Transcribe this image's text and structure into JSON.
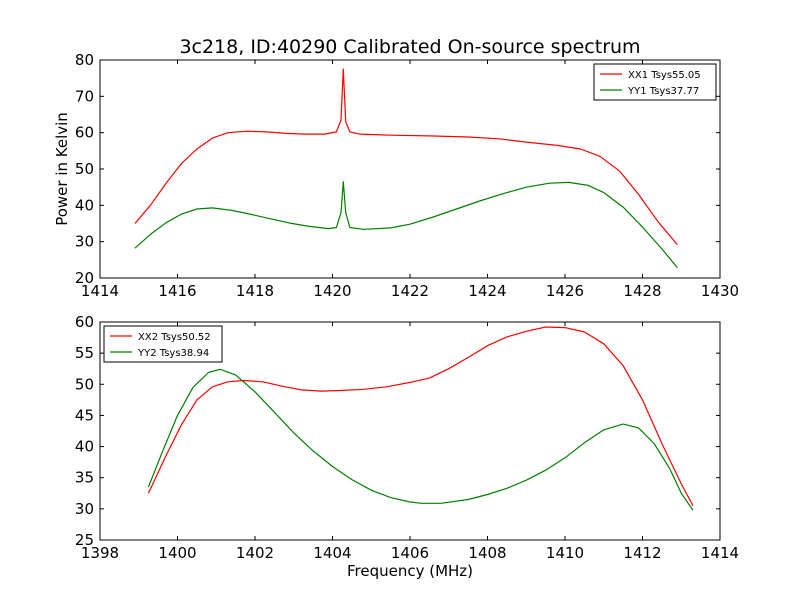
{
  "figure": {
    "title": "3c218, ID:40290 Calibrated On-source spectrum",
    "xlabel": "Frequency (MHz)",
    "ylabel": "Power in Kelvin"
  },
  "chart_data": [
    {
      "type": "line",
      "ylabel": "Power in Kelvin",
      "xlim": [
        1414,
        1430
      ],
      "ylim": [
        20,
        80
      ],
      "xticks": [
        1414,
        1416,
        1418,
        1420,
        1422,
        1424,
        1426,
        1428,
        1430
      ],
      "yticks": [
        20,
        30,
        40,
        50,
        60,
        70,
        80
      ],
      "grid": false,
      "legend_position": "top-right",
      "series": [
        {
          "name": "XX1 Tsys55.05",
          "color": "#ff0000",
          "points": [
            [
              1414.9,
              35.0
            ],
            [
              1415.3,
              40.0
            ],
            [
              1415.7,
              46.0
            ],
            [
              1416.1,
              51.5
            ],
            [
              1416.5,
              55.5
            ],
            [
              1416.9,
              58.5
            ],
            [
              1417.3,
              60.0
            ],
            [
              1417.8,
              60.4
            ],
            [
              1418.3,
              60.2
            ],
            [
              1418.8,
              59.8
            ],
            [
              1419.3,
              59.6
            ],
            [
              1419.8,
              59.6
            ],
            [
              1420.1,
              60.2
            ],
            [
              1420.22,
              63.5
            ],
            [
              1420.28,
              77.5
            ],
            [
              1420.34,
              63.0
            ],
            [
              1420.45,
              60.2
            ],
            [
              1420.7,
              59.6
            ],
            [
              1421.5,
              59.3
            ],
            [
              1422.5,
              59.1
            ],
            [
              1423.5,
              58.8
            ],
            [
              1424.3,
              58.3
            ],
            [
              1425.0,
              57.4
            ],
            [
              1425.8,
              56.5
            ],
            [
              1426.4,
              55.5
            ],
            [
              1426.9,
              53.5
            ],
            [
              1427.4,
              49.5
            ],
            [
              1427.9,
              43.0
            ],
            [
              1428.4,
              35.5
            ],
            [
              1428.9,
              29.2
            ]
          ]
        },
        {
          "name": "YY1 Tsys37.77",
          "color": "#008000",
          "points": [
            [
              1414.9,
              28.2
            ],
            [
              1415.3,
              32.0
            ],
            [
              1415.7,
              35.2
            ],
            [
              1416.1,
              37.6
            ],
            [
              1416.5,
              39.0
            ],
            [
              1416.9,
              39.3
            ],
            [
              1417.4,
              38.6
            ],
            [
              1417.9,
              37.5
            ],
            [
              1418.4,
              36.3
            ],
            [
              1418.9,
              35.1
            ],
            [
              1419.4,
              34.2
            ],
            [
              1419.9,
              33.6
            ],
            [
              1420.1,
              33.9
            ],
            [
              1420.22,
              38.0
            ],
            [
              1420.28,
              46.5
            ],
            [
              1420.34,
              38.0
            ],
            [
              1420.45,
              33.9
            ],
            [
              1420.8,
              33.4
            ],
            [
              1421.5,
              33.8
            ],
            [
              1422.0,
              34.8
            ],
            [
              1422.6,
              36.8
            ],
            [
              1423.2,
              39.0
            ],
            [
              1423.8,
              41.2
            ],
            [
              1424.4,
              43.2
            ],
            [
              1425.0,
              45.0
            ],
            [
              1425.6,
              46.1
            ],
            [
              1426.1,
              46.3
            ],
            [
              1426.6,
              45.5
            ],
            [
              1427.0,
              43.5
            ],
            [
              1427.5,
              39.5
            ],
            [
              1428.0,
              34.0
            ],
            [
              1428.5,
              28.0
            ],
            [
              1428.9,
              22.8
            ]
          ]
        }
      ]
    },
    {
      "type": "line",
      "xlabel": "Frequency (MHz)",
      "xlim": [
        1398,
        1414
      ],
      "ylim": [
        25,
        60
      ],
      "xticks": [
        1398,
        1400,
        1402,
        1404,
        1406,
        1408,
        1410,
        1412,
        1414
      ],
      "yticks": [
        25,
        30,
        35,
        40,
        45,
        50,
        55,
        60
      ],
      "grid": false,
      "legend_position": "top-left",
      "series": [
        {
          "name": "XX2 Tsys50.52",
          "color": "#ff0000",
          "points": [
            [
              1399.25,
              32.5
            ],
            [
              1399.7,
              38.5
            ],
            [
              1400.1,
              43.5
            ],
            [
              1400.5,
              47.5
            ],
            [
              1400.9,
              49.6
            ],
            [
              1401.3,
              50.4
            ],
            [
              1401.7,
              50.6
            ],
            [
              1402.2,
              50.4
            ],
            [
              1402.7,
              49.7
            ],
            [
              1403.2,
              49.1
            ],
            [
              1403.7,
              48.9
            ],
            [
              1404.2,
              49.0
            ],
            [
              1404.8,
              49.2
            ],
            [
              1405.4,
              49.6
            ],
            [
              1406.0,
              50.3
            ],
            [
              1406.5,
              51.0
            ],
            [
              1407.0,
              52.5
            ],
            [
              1407.5,
              54.3
            ],
            [
              1408.0,
              56.2
            ],
            [
              1408.5,
              57.6
            ],
            [
              1409.0,
              58.5
            ],
            [
              1409.5,
              59.2
            ],
            [
              1410.0,
              59.1
            ],
            [
              1410.5,
              58.4
            ],
            [
              1411.0,
              56.5
            ],
            [
              1411.5,
              53.0
            ],
            [
              1412.0,
              47.5
            ],
            [
              1412.5,
              40.5
            ],
            [
              1413.0,
              34.0
            ],
            [
              1413.3,
              30.5
            ]
          ]
        },
        {
          "name": "YY2 Tsys38.94",
          "color": "#008000",
          "points": [
            [
              1399.25,
              33.5
            ],
            [
              1399.6,
              39.0
            ],
            [
              1400.0,
              45.0
            ],
            [
              1400.4,
              49.5
            ],
            [
              1400.8,
              51.9
            ],
            [
              1401.1,
              52.4
            ],
            [
              1401.5,
              51.5
            ],
            [
              1402.0,
              48.8
            ],
            [
              1402.5,
              45.5
            ],
            [
              1403.0,
              42.2
            ],
            [
              1403.5,
              39.3
            ],
            [
              1404.0,
              36.8
            ],
            [
              1404.5,
              34.7
            ],
            [
              1405.0,
              33.0
            ],
            [
              1405.5,
              31.8
            ],
            [
              1406.0,
              31.1
            ],
            [
              1406.3,
              30.9
            ],
            [
              1406.8,
              30.9
            ],
            [
              1407.5,
              31.5
            ],
            [
              1408.0,
              32.3
            ],
            [
              1408.5,
              33.3
            ],
            [
              1409.0,
              34.6
            ],
            [
              1409.5,
              36.2
            ],
            [
              1410.0,
              38.2
            ],
            [
              1410.5,
              40.6
            ],
            [
              1411.0,
              42.7
            ],
            [
              1411.5,
              43.6
            ],
            [
              1411.9,
              43.0
            ],
            [
              1412.3,
              40.5
            ],
            [
              1412.7,
              36.5
            ],
            [
              1413.0,
              32.5
            ],
            [
              1413.3,
              29.8
            ]
          ]
        }
      ]
    }
  ]
}
